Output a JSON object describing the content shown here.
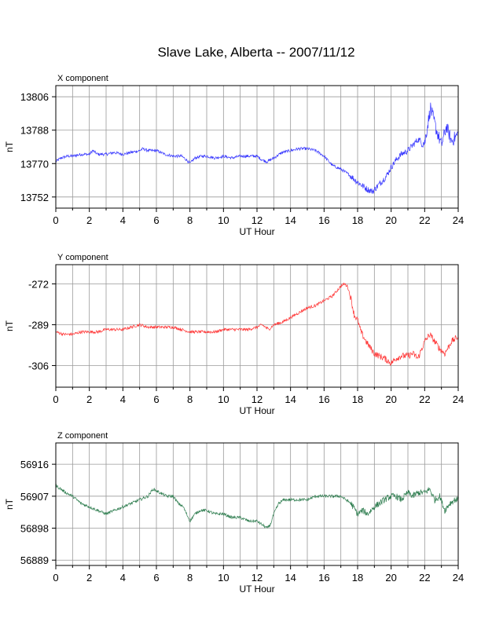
{
  "title": "Slave Lake, Alberta -- 2007/11/12",
  "chart_data": [
    {
      "type": "line",
      "panel_label": "X component",
      "xlabel": "UT Hour",
      "ylabel": "nT",
      "xlim": [
        0,
        24
      ],
      "xticks": [
        0,
        2,
        4,
        6,
        8,
        10,
        12,
        14,
        16,
        18,
        20,
        22,
        24
      ],
      "ylim": [
        13746,
        13812
      ],
      "yticks": [
        13752,
        13770,
        13788,
        13806
      ],
      "grid": true,
      "color": "#3333ff",
      "series": [
        {
          "x": [
            0,
            0.3,
            0.7,
            1,
            1.5,
            2,
            2.2,
            2.5,
            3,
            3.5,
            4,
            4.5,
            5,
            5.2,
            5.5,
            6,
            6.5,
            7,
            7.5,
            7.8,
            8,
            8.3,
            8.7,
            9,
            9.5,
            10,
            10.5,
            11,
            11.5,
            12,
            12.3,
            12.6,
            13,
            13.5,
            14,
            14.5,
            15,
            15.5,
            16,
            16.5,
            17,
            17.5,
            18,
            18.3,
            18.6,
            18.9,
            19.1,
            19.4,
            19.7,
            20,
            20.3,
            20.6,
            21,
            21.3,
            21.6,
            22,
            22.2,
            22.35,
            22.5,
            22.7,
            23,
            23.3,
            23.6,
            24
          ],
          "y": [
            13771,
            13773,
            13774,
            13774,
            13775,
            13775,
            13777,
            13775,
            13775,
            13776,
            13775,
            13776,
            13777,
            13778,
            13777,
            13777,
            13775,
            13774,
            13774,
            13772,
            13770,
            13773,
            13774,
            13774,
            13773,
            13774,
            13773,
            13774,
            13774,
            13774,
            13772,
            13771,
            13773,
            13776,
            13777,
            13778,
            13778,
            13777,
            13774,
            13769,
            13767,
            13764,
            13760,
            13758,
            13756,
            13755,
            13757,
            13760,
            13763,
            13768,
            13772,
            13775,
            13777,
            13780,
            13783,
            13781,
            13792,
            13800,
            13795,
            13788,
            13780,
            13790,
            13782,
            13786
          ]
        }
      ]
    },
    {
      "type": "line",
      "panel_label": "Y component",
      "xlabel": "UT Hour",
      "ylabel": "nT",
      "xlim": [
        0,
        24
      ],
      "xticks": [
        0,
        2,
        4,
        6,
        8,
        10,
        12,
        14,
        16,
        18,
        20,
        22,
        24
      ],
      "ylim": [
        -315,
        -264
      ],
      "yticks": [
        -272,
        -289,
        -306
      ],
      "grid": true,
      "color": "#ff3333",
      "series": [
        {
          "x": [
            0,
            0.5,
            1,
            1.5,
            2,
            2.5,
            3,
            3.5,
            4,
            4.5,
            5,
            5.5,
            6,
            6.5,
            7,
            7.5,
            8,
            8.5,
            9,
            9.5,
            10,
            10.5,
            11,
            11.5,
            12,
            12.3,
            12.7,
            13,
            13.5,
            14,
            14.5,
            15,
            15.5,
            16,
            16.5,
            17,
            17.2,
            17.4,
            17.6,
            17.8,
            18,
            18.2,
            18.5,
            18.8,
            19,
            19.3,
            19.6,
            20,
            20.3,
            20.6,
            21,
            21.3,
            21.6,
            22,
            22.3,
            22.6,
            22.9,
            23.2,
            23.6,
            24
          ],
          "y": [
            -292,
            -293,
            -293,
            -292,
            -292,
            -292,
            -291,
            -291,
            -291,
            -290,
            -289,
            -290,
            -290,
            -290,
            -290,
            -291,
            -292,
            -292,
            -292,
            -292,
            -291,
            -291,
            -291,
            -291,
            -290,
            -289,
            -291,
            -289,
            -288,
            -286,
            -284,
            -282,
            -281,
            -279,
            -277,
            -273,
            -272,
            -273,
            -278,
            -285,
            -287,
            -292,
            -296,
            -299,
            -301,
            -302,
            -303,
            -305,
            -303,
            -302,
            -302,
            -301,
            -303,
            -296,
            -293,
            -296,
            -299,
            -301,
            -296,
            -294
          ]
        }
      ]
    },
    {
      "type": "line",
      "panel_label": "Z component",
      "xlabel": "UT Hour",
      "ylabel": "nT",
      "xlim": [
        0,
        24
      ],
      "xticks": [
        0,
        2,
        4,
        6,
        8,
        10,
        12,
        14,
        16,
        18,
        20,
        22,
        24
      ],
      "ylim": [
        56887.5,
        56922
      ],
      "yticks": [
        56889,
        56898,
        56907,
        56916
      ],
      "grid": true,
      "color": "#2e7d4f",
      "series": [
        {
          "x": [
            0,
            0.3,
            0.6,
            1,
            1.5,
            2,
            2.5,
            3,
            3.5,
            4,
            4.5,
            5,
            5.5,
            5.8,
            6.2,
            6.6,
            7,
            7.3,
            7.6,
            7.8,
            8,
            8.3,
            8.6,
            9,
            9.5,
            10,
            10.5,
            11,
            11.5,
            12,
            12.3,
            12.6,
            12.8,
            13,
            13.3,
            13.6,
            14,
            14.5,
            15,
            15.5,
            16,
            16.5,
            17,
            17.3,
            17.6,
            18,
            18.3,
            18.6,
            19,
            19.3,
            19.6,
            20,
            20.3,
            20.6,
            21,
            21.3,
            21.6,
            22,
            22.3,
            22.6,
            22.9,
            23.2,
            23.5,
            23.8,
            24
          ],
          "y": [
            56910,
            56909,
            56908,
            56907,
            56905,
            56904,
            56903,
            56902,
            56903,
            56904,
            56905,
            56906,
            56907,
            56909,
            56908,
            56907,
            56907,
            56905,
            56904,
            56902,
            56900,
            56902,
            56903,
            56903,
            56902,
            56902,
            56901,
            56901,
            56900,
            56900,
            56899,
            56898,
            56899,
            56902,
            56905,
            56906,
            56906,
            56906,
            56906,
            56907,
            56907,
            56907,
            56907,
            56906,
            56905,
            56902,
            56903,
            56902,
            56904,
            56905,
            56906,
            56907,
            56907,
            56906,
            56908,
            56907,
            56908,
            56908,
            56909,
            56906,
            56907,
            56903,
            56905,
            56906,
            56906
          ]
        }
      ]
    }
  ]
}
